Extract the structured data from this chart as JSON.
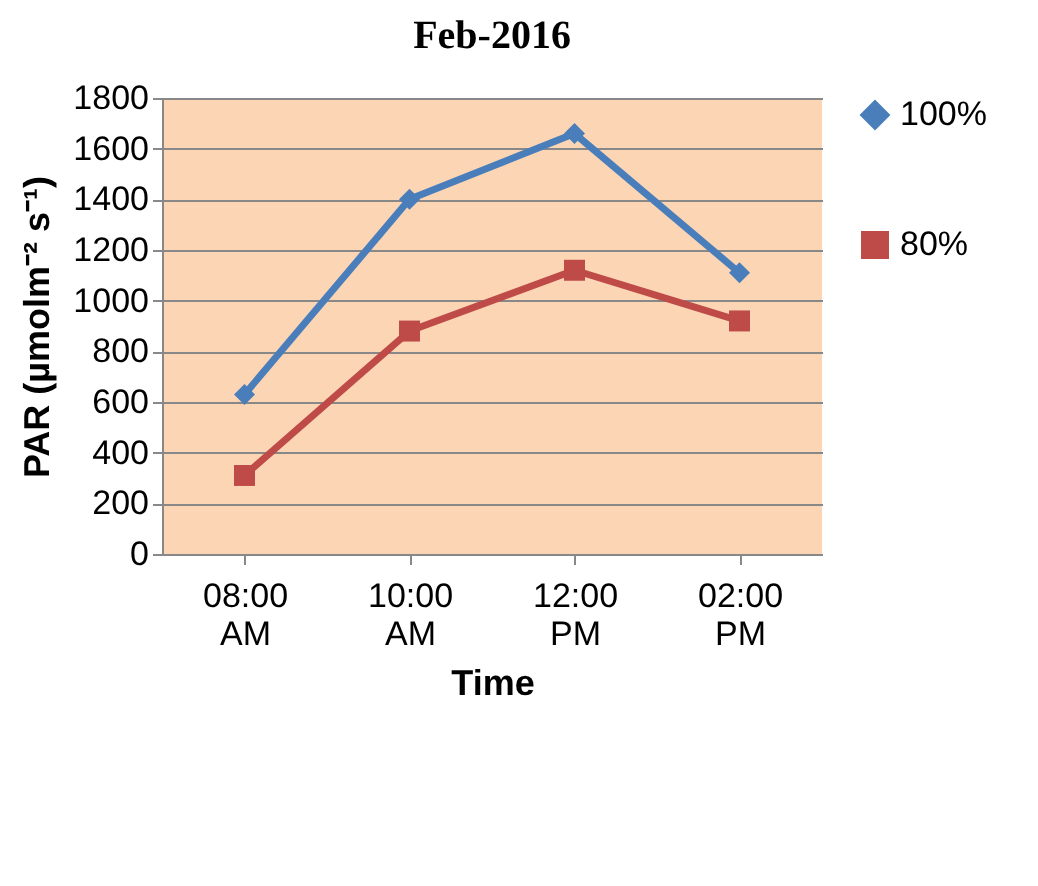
{
  "chart_data": {
    "type": "line",
    "title": "Feb-2016",
    "xlabel": "Time",
    "ylabel": "PAR (µmolm⁻² s⁻¹)",
    "categories": [
      "08:00 AM",
      "10:00 AM",
      "12:00 PM",
      "02:00 PM"
    ],
    "series": [
      {
        "name": "100%",
        "color": "#4a7ebb",
        "marker": "diamond",
        "values": [
          630,
          1400,
          1660,
          1110
        ]
      },
      {
        "name": "80%",
        "color": "#be4b48",
        "marker": "square",
        "values": [
          310,
          880,
          1120,
          920
        ]
      }
    ],
    "ylim": [
      0,
      1800
    ],
    "yticks": [
      0,
      200,
      400,
      600,
      800,
      1000,
      1200,
      1400,
      1600,
      1800
    ],
    "grid": "y",
    "legend": "right"
  }
}
